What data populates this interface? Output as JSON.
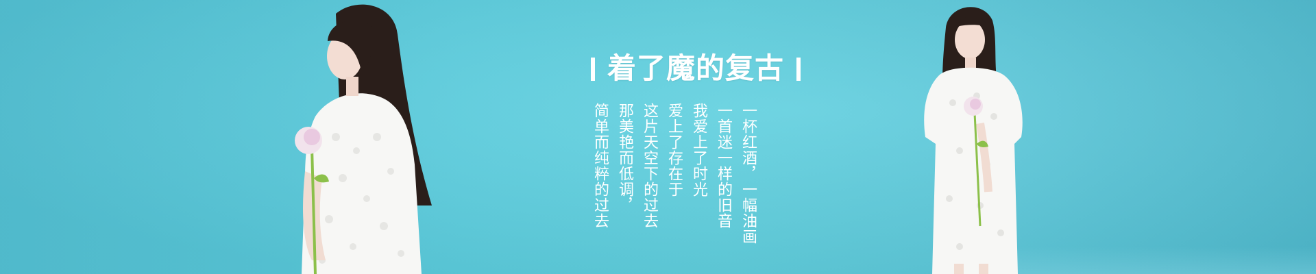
{
  "banner": {
    "title": "着了魔的复古",
    "poem_lines": [
      "一杯红酒，一幅油画",
      "一首迷一样的旧音",
      "我爱上了时光",
      "爱上了存在于",
      "这片天空下的过去",
      "那美艳而低调，",
      "简单而纯粹的过去"
    ]
  },
  "colors": {
    "background": "#5dccdc",
    "text": "#ffffff",
    "dress": "#f7f7f5",
    "hair": "#2a1e1a",
    "flower": "#e9c9e0",
    "stem": "#8cc04a"
  }
}
